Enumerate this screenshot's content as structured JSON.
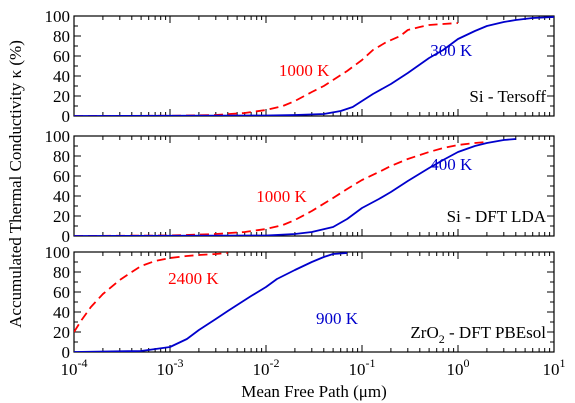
{
  "chart_data": {
    "type": "line",
    "ylabel": "Accumulated Thermal Conductivity κ (%)",
    "xlabel": "Mean Free Path (μm)",
    "x_scale": "log",
    "xlim": [
      0.0001,
      10
    ],
    "x_ticks": [
      0.0001,
      0.001,
      0.01,
      0.1,
      1,
      10
    ],
    "x_tick_labels": [
      {
        "base": "10",
        "exp": "-4"
      },
      {
        "base": "10",
        "exp": "-3"
      },
      {
        "base": "10",
        "exp": "-2"
      },
      {
        "base": "10",
        "exp": "-1"
      },
      {
        "base": "10",
        "exp": "0"
      },
      {
        "base": "10",
        "exp": "1"
      }
    ],
    "ylim": [
      0,
      100
    ],
    "y_ticks": [
      0,
      20,
      40,
      60,
      80,
      100
    ],
    "y_tick_labels": [
      "0",
      "20",
      "40",
      "60",
      "80",
      "100"
    ],
    "colors": {
      "red": "#ff0000",
      "blue": "#0000cc",
      "axis": "#000000"
    },
    "panels": [
      {
        "title": "Si - Tersoff",
        "title_sub": "",
        "title_rest": "",
        "series": [
          {
            "name": "1000 K",
            "color": "#ff0000",
            "style": "dashed",
            "points": [
              [
                0.0001,
                0
              ],
              [
                0.001,
                0.2
              ],
              [
                0.003,
                1
              ],
              [
                0.006,
                3
              ],
              [
                0.01,
                6
              ],
              [
                0.015,
                10
              ],
              [
                0.02,
                15
              ],
              [
                0.03,
                24
              ],
              [
                0.04,
                30
              ],
              [
                0.05,
                36
              ],
              [
                0.07,
                45
              ],
              [
                0.1,
                56
              ],
              [
                0.13,
                66
              ],
              [
                0.18,
                74
              ],
              [
                0.25,
                80
              ],
              [
                0.3,
                86
              ],
              [
                0.4,
                89
              ],
              [
                0.5,
                91
              ],
              [
                0.7,
                92
              ],
              [
                1.0,
                93
              ]
            ]
          },
          {
            "name": "300 K",
            "color": "#0000cc",
            "style": "solid",
            "points": [
              [
                0.0001,
                0
              ],
              [
                0.01,
                0.5
              ],
              [
                0.02,
                1
              ],
              [
                0.04,
                2
              ],
              [
                0.06,
                5
              ],
              [
                0.08,
                9
              ],
              [
                0.1,
                15
              ],
              [
                0.13,
                22
              ],
              [
                0.2,
                32
              ],
              [
                0.3,
                43
              ],
              [
                0.5,
                58
              ],
              [
                0.7,
                66
              ],
              [
                1.0,
                77
              ],
              [
                1.5,
                85
              ],
              [
                2.0,
                90
              ],
              [
                3.0,
                94
              ],
              [
                4.0,
                96
              ],
              [
                6.0,
                98
              ],
              [
                10,
                99
              ]
            ]
          }
        ],
        "series_labels": [
          {
            "text": "1000 K",
            "color": "#ff0000",
            "x": 0.025,
            "y": 40
          },
          {
            "text": "300 K",
            "color": "#0000cc",
            "x": 0.85,
            "y": 60
          }
        ]
      },
      {
        "title": "Si - DFT LDA",
        "title_sub": "",
        "title_rest": "",
        "series": [
          {
            "name": "1000 K",
            "color": "#ff0000",
            "style": "dashed",
            "points": [
              [
                0.0001,
                0
              ],
              [
                0.001,
                0.5
              ],
              [
                0.003,
                2
              ],
              [
                0.006,
                4
              ],
              [
                0.01,
                7
              ],
              [
                0.015,
                11
              ],
              [
                0.02,
                16
              ],
              [
                0.03,
                25
              ],
              [
                0.05,
                38
              ],
              [
                0.07,
                47
              ],
              [
                0.1,
                56
              ],
              [
                0.15,
                64
              ],
              [
                0.2,
                70
              ],
              [
                0.3,
                77
              ],
              [
                0.5,
                84
              ],
              [
                0.7,
                88
              ],
              [
                1.0,
                91
              ],
              [
                1.5,
                93
              ],
              [
                2,
                94
              ]
            ]
          },
          {
            "name": "400 K",
            "color": "#0000cc",
            "style": "solid",
            "points": [
              [
                0.0001,
                0
              ],
              [
                0.01,
                0.5
              ],
              [
                0.02,
                2
              ],
              [
                0.03,
                4
              ],
              [
                0.05,
                9
              ],
              [
                0.07,
                17
              ],
              [
                0.1,
                28
              ],
              [
                0.15,
                37
              ],
              [
                0.2,
                44
              ],
              [
                0.3,
                55
              ],
              [
                0.5,
                68
              ],
              [
                0.7,
                76
              ],
              [
                1.0,
                84
              ],
              [
                1.5,
                90
              ],
              [
                2.0,
                93
              ],
              [
                3.0,
                96
              ],
              [
                4.0,
                97
              ]
            ]
          }
        ],
        "series_labels": [
          {
            "text": "1000 K",
            "color": "#ff0000",
            "x": 0.0145,
            "y": 34
          },
          {
            "text": "400 K",
            "color": "#0000cc",
            "x": 0.85,
            "y": 66
          }
        ]
      },
      {
        "title": "ZrO",
        "title_sub": "2",
        "title_rest": " - DFT PBEsol",
        "series": [
          {
            "name": "2400 K",
            "color": "#ff0000",
            "style": "dashed",
            "points": [
              [
                0.0001,
                20
              ],
              [
                0.00012,
                32
              ],
              [
                0.00015,
                45
              ],
              [
                0.0002,
                58
              ],
              [
                0.0003,
                72
              ],
              [
                0.0004,
                80
              ],
              [
                0.0005,
                86
              ],
              [
                0.0007,
                91
              ],
              [
                0.001,
                94
              ],
              [
                0.0015,
                96
              ],
              [
                0.002,
                97
              ],
              [
                0.003,
                98
              ],
              [
                0.004,
                99
              ]
            ]
          },
          {
            "name": "900 K",
            "color": "#0000cc",
            "style": "solid",
            "points": [
              [
                0.0001,
                0
              ],
              [
                0.0005,
                1
              ],
              [
                0.001,
                5
              ],
              [
                0.0015,
                13
              ],
              [
                0.002,
                22
              ],
              [
                0.003,
                33
              ],
              [
                0.004,
                41
              ],
              [
                0.005,
                47
              ],
              [
                0.007,
                56
              ],
              [
                0.01,
                65
              ],
              [
                0.013,
                73
              ],
              [
                0.02,
                82
              ],
              [
                0.03,
                90
              ],
              [
                0.04,
                95
              ],
              [
                0.05,
                98
              ],
              [
                0.07,
                99
              ]
            ]
          }
        ],
        "series_labels": [
          {
            "text": "2400 K",
            "color": "#ff0000",
            "x": 0.00175,
            "y": 68
          },
          {
            "text": "900 K",
            "color": "#0000cc",
            "x": 0.055,
            "y": 28
          }
        ]
      }
    ]
  }
}
